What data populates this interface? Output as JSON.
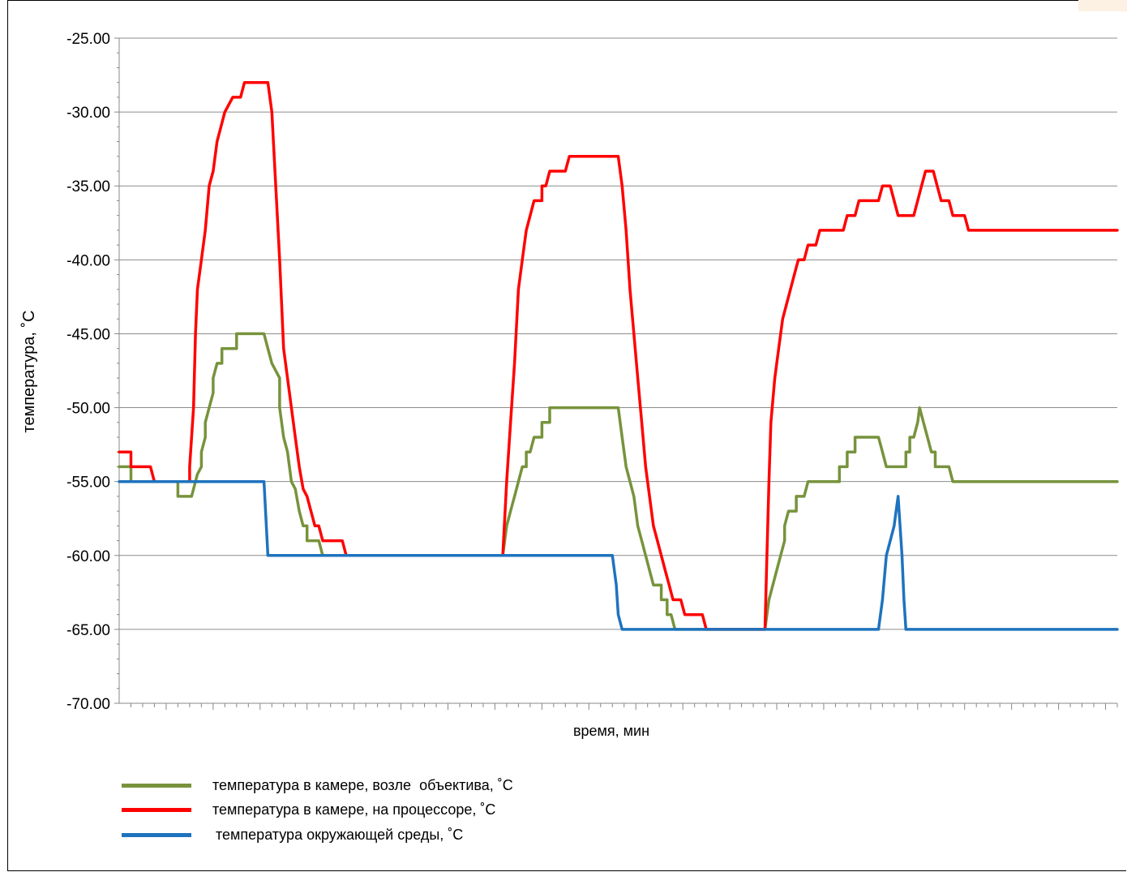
{
  "chart_data": {
    "type": "line",
    "xlabel": "время, мин",
    "ylabel": "температура, ˚С",
    "ylim": [
      -70,
      -25
    ],
    "yticks": [
      "-25.00",
      "-30.00",
      "-35.00",
      "-40.00",
      "-45.00",
      "-50.00",
      "-55.00",
      "-60.00",
      "-65.00",
      "-70.00"
    ],
    "xlim": [
      0,
      102
    ],
    "grid": "horizontal",
    "legend_position": "bottom-left",
    "series": [
      {
        "name": "температура в камере, возле  объектива, ˚С",
        "color": "#77933c",
        "points": [
          [
            0,
            -54
          ],
          [
            1.2,
            -54
          ],
          [
            1.2,
            -55
          ],
          [
            6,
            -55
          ],
          [
            6,
            -56
          ],
          [
            7.4,
            -56
          ],
          [
            7.8,
            -55
          ],
          [
            8,
            -54.5
          ],
          [
            8.4,
            -54
          ],
          [
            8.4,
            -53
          ],
          [
            8.8,
            -52
          ],
          [
            8.8,
            -51
          ],
          [
            9.2,
            -50
          ],
          [
            9.6,
            -49
          ],
          [
            9.6,
            -48
          ],
          [
            10,
            -47
          ],
          [
            10.5,
            -47
          ],
          [
            10.5,
            -46
          ],
          [
            12,
            -46
          ],
          [
            12,
            -45
          ],
          [
            14.8,
            -45
          ],
          [
            15.2,
            -46
          ],
          [
            15.6,
            -47
          ],
          [
            16.4,
            -48
          ],
          [
            16.4,
            -50
          ],
          [
            16.8,
            -52
          ],
          [
            17.2,
            -53
          ],
          [
            17.6,
            -55
          ],
          [
            18,
            -55.5
          ],
          [
            18.4,
            -57
          ],
          [
            18.8,
            -58
          ],
          [
            19.2,
            -58
          ],
          [
            19.2,
            -59
          ],
          [
            20.4,
            -59
          ],
          [
            20.8,
            -60
          ],
          [
            39.2,
            -60
          ],
          [
            39.6,
            -58
          ],
          [
            40,
            -57
          ],
          [
            40.4,
            -56
          ],
          [
            40.8,
            -55
          ],
          [
            41.2,
            -54
          ],
          [
            41.6,
            -54
          ],
          [
            41.6,
            -53
          ],
          [
            42,
            -53
          ],
          [
            42.4,
            -52
          ],
          [
            43.2,
            -52
          ],
          [
            43.2,
            -51
          ],
          [
            44,
            -51
          ],
          [
            44,
            -50
          ],
          [
            51,
            -50
          ],
          [
            51.4,
            -52
          ],
          [
            51.8,
            -54
          ],
          [
            52.2,
            -55
          ],
          [
            52.6,
            -56
          ],
          [
            53,
            -58
          ],
          [
            53.4,
            -59
          ],
          [
            53.8,
            -60
          ],
          [
            54.2,
            -61
          ],
          [
            54.6,
            -62
          ],
          [
            55.4,
            -62
          ],
          [
            55.4,
            -63
          ],
          [
            56,
            -63
          ],
          [
            56,
            -64
          ],
          [
            56.4,
            -64
          ],
          [
            56.8,
            -65
          ],
          [
            66,
            -65
          ],
          [
            66.2,
            -64
          ],
          [
            66.4,
            -63
          ],
          [
            66.8,
            -62
          ],
          [
            67.2,
            -61
          ],
          [
            67.6,
            -60
          ],
          [
            68,
            -59
          ],
          [
            68,
            -58
          ],
          [
            68.4,
            -57
          ],
          [
            69.2,
            -57
          ],
          [
            69.2,
            -56
          ],
          [
            70,
            -56
          ],
          [
            70.4,
            -55
          ],
          [
            73.6,
            -55
          ],
          [
            73.6,
            -54
          ],
          [
            74.4,
            -54
          ],
          [
            74.4,
            -53
          ],
          [
            75.2,
            -53
          ],
          [
            75.2,
            -52
          ],
          [
            77.6,
            -52
          ],
          [
            78,
            -53
          ],
          [
            78.4,
            -54
          ],
          [
            80.4,
            -54
          ],
          [
            80.4,
            -53
          ],
          [
            80.8,
            -53
          ],
          [
            80.8,
            -52
          ],
          [
            81.2,
            -52
          ],
          [
            81.6,
            -51
          ],
          [
            81.8,
            -50
          ],
          [
            82.2,
            -51
          ],
          [
            82.6,
            -52
          ],
          [
            83,
            -53
          ],
          [
            83.4,
            -53
          ],
          [
            83.4,
            -54
          ],
          [
            84.8,
            -54
          ],
          [
            85.2,
            -55
          ],
          [
            102,
            -55
          ]
        ]
      },
      {
        "name": "температура в камере, на процессоре, ˚С",
        "color": "#ff0000",
        "points": [
          [
            0,
            -53
          ],
          [
            1.2,
            -53
          ],
          [
            1.2,
            -54
          ],
          [
            3.2,
            -54
          ],
          [
            3.6,
            -55
          ],
          [
            7.2,
            -55
          ],
          [
            7.2,
            -54
          ],
          [
            7.6,
            -50
          ],
          [
            7.8,
            -45
          ],
          [
            8,
            -42
          ],
          [
            8.4,
            -40
          ],
          [
            8.8,
            -38
          ],
          [
            9.2,
            -35
          ],
          [
            9.6,
            -34
          ],
          [
            10,
            -32
          ],
          [
            10.4,
            -31
          ],
          [
            10.8,
            -30
          ],
          [
            11.2,
            -29.5
          ],
          [
            11.6,
            -29
          ],
          [
            12.4,
            -29
          ],
          [
            12.8,
            -28
          ],
          [
            15.2,
            -28
          ],
          [
            15.6,
            -30
          ],
          [
            16,
            -35
          ],
          [
            16.4,
            -40
          ],
          [
            16.8,
            -46
          ],
          [
            17.2,
            -48
          ],
          [
            17.6,
            -50
          ],
          [
            18,
            -52
          ],
          [
            18.4,
            -54
          ],
          [
            18.8,
            -55.5
          ],
          [
            19.2,
            -56
          ],
          [
            19.6,
            -57
          ],
          [
            20,
            -58
          ],
          [
            20.4,
            -58
          ],
          [
            20.8,
            -59
          ],
          [
            22.8,
            -59
          ],
          [
            23.2,
            -60
          ],
          [
            39.2,
            -60
          ],
          [
            39.6,
            -55
          ],
          [
            40,
            -51
          ],
          [
            40.4,
            -47
          ],
          [
            40.8,
            -42
          ],
          [
            41.2,
            -40
          ],
          [
            41.6,
            -38
          ],
          [
            42,
            -37
          ],
          [
            42.4,
            -36
          ],
          [
            43.2,
            -36
          ],
          [
            43.2,
            -35
          ],
          [
            43.6,
            -35
          ],
          [
            44,
            -34
          ],
          [
            45.6,
            -34
          ],
          [
            46,
            -33
          ],
          [
            51,
            -33
          ],
          [
            51.4,
            -35
          ],
          [
            51.8,
            -38
          ],
          [
            52.2,
            -42
          ],
          [
            52.6,
            -45
          ],
          [
            53,
            -48
          ],
          [
            53.4,
            -51
          ],
          [
            53.8,
            -54
          ],
          [
            54.2,
            -56
          ],
          [
            54.6,
            -58
          ],
          [
            55,
            -59
          ],
          [
            55.4,
            -60
          ],
          [
            55.8,
            -61
          ],
          [
            56.2,
            -62
          ],
          [
            56.6,
            -63
          ],
          [
            57.4,
            -63
          ],
          [
            57.8,
            -64
          ],
          [
            59.6,
            -64
          ],
          [
            60,
            -65
          ],
          [
            66,
            -65
          ],
          [
            66.2,
            -60
          ],
          [
            66.4,
            -55
          ],
          [
            66.6,
            -51
          ],
          [
            67,
            -48
          ],
          [
            67.4,
            -46
          ],
          [
            67.8,
            -44
          ],
          [
            68.2,
            -43
          ],
          [
            68.6,
            -42
          ],
          [
            69,
            -41
          ],
          [
            69.4,
            -40
          ],
          [
            70,
            -40
          ],
          [
            70.4,
            -39
          ],
          [
            71.2,
            -39
          ],
          [
            71.6,
            -38
          ],
          [
            74,
            -38
          ],
          [
            74.4,
            -37
          ],
          [
            75.2,
            -37
          ],
          [
            75.6,
            -36
          ],
          [
            77.6,
            -36
          ],
          [
            78,
            -35
          ],
          [
            78.8,
            -35
          ],
          [
            79.2,
            -36
          ],
          [
            79.6,
            -37
          ],
          [
            81.2,
            -37
          ],
          [
            81.6,
            -36
          ],
          [
            82,
            -35
          ],
          [
            82.4,
            -34
          ],
          [
            83.2,
            -34
          ],
          [
            83.6,
            -35
          ],
          [
            84,
            -36
          ],
          [
            84.8,
            -36
          ],
          [
            85.2,
            -37
          ],
          [
            86.4,
            -37
          ],
          [
            86.8,
            -38
          ],
          [
            102,
            -38
          ]
        ]
      },
      {
        "name": "температура окружающей среды, ˚С",
        "color": "#1e73be",
        "points": [
          [
            0,
            -55
          ],
          [
            14.8,
            -55
          ],
          [
            15.2,
            -60
          ],
          [
            50.4,
            -60
          ],
          [
            50.8,
            -62
          ],
          [
            51,
            -64
          ],
          [
            51.4,
            -65
          ],
          [
            77.6,
            -65
          ],
          [
            78,
            -63
          ],
          [
            78.4,
            -60
          ],
          [
            78.8,
            -59
          ],
          [
            79.2,
            -58
          ],
          [
            79.4,
            -57
          ],
          [
            79.6,
            -56
          ],
          [
            79.8,
            -58
          ],
          [
            80,
            -60
          ],
          [
            80.2,
            -63
          ],
          [
            80.4,
            -65
          ],
          [
            102,
            -65
          ]
        ]
      }
    ]
  }
}
